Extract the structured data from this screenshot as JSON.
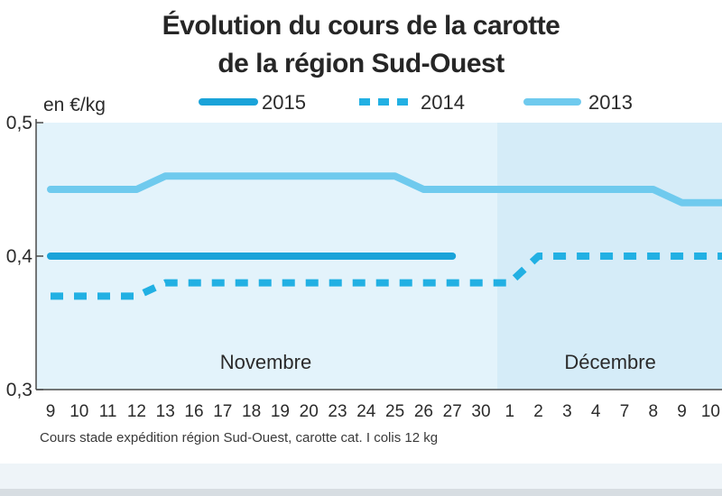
{
  "chart_data": {
    "type": "line",
    "title": [
      "Évolution du cours de la carotte",
      "de la région Sud-Ouest"
    ],
    "ylabel": "en €/kg",
    "ylim": [
      0.3,
      0.5
    ],
    "yticks": [
      "0,5",
      "0,4",
      "0,3"
    ],
    "yticks_values": [
      0.5,
      0.4,
      0.3
    ],
    "categories": [
      "9",
      "10",
      "11",
      "12",
      "13",
      "16",
      "17",
      "18",
      "19",
      "20",
      "23",
      "24",
      "25",
      "26",
      "27",
      "30",
      "1",
      "2",
      "3",
      "4",
      "7",
      "8",
      "9",
      "10"
    ],
    "months": [
      {
        "label": "Novembre",
        "from_index": 0,
        "to_index": 15
      },
      {
        "label": "Décembre",
        "from_index": 16,
        "to_index": 23
      }
    ],
    "legend_position": "top",
    "series": [
      {
        "name": "2015",
        "style": "solid",
        "color": "#1aa3d9",
        "values": [
          0.4,
          0.4,
          0.4,
          0.4,
          0.4,
          0.4,
          0.4,
          0.4,
          0.4,
          0.4,
          0.4,
          0.4,
          0.4,
          0.4,
          0.4,
          null,
          null,
          null,
          null,
          null,
          null,
          null,
          null,
          null
        ]
      },
      {
        "name": "2014",
        "style": "dashed",
        "color": "#22b0e3",
        "values": [
          0.37,
          0.37,
          0.37,
          0.37,
          0.38,
          0.38,
          0.38,
          0.38,
          0.38,
          0.38,
          0.38,
          0.38,
          0.38,
          0.38,
          0.38,
          0.38,
          0.38,
          0.4,
          0.4,
          0.4,
          0.4,
          0.4,
          0.4,
          0.4
        ]
      },
      {
        "name": "2013",
        "style": "solid",
        "color": "#6fcaee",
        "values": [
          0.45,
          0.45,
          0.45,
          0.45,
          0.46,
          0.46,
          0.46,
          0.46,
          0.46,
          0.46,
          0.46,
          0.46,
          0.46,
          0.45,
          0.45,
          0.45,
          0.45,
          0.45,
          0.45,
          0.45,
          0.45,
          0.45,
          0.44,
          0.44
        ]
      }
    ],
    "source": "Cours stade expédition région Sud-Ouest, carotte cat. I colis 12 kg"
  },
  "colors": {
    "plot_bg_nov": "#e3f3fb",
    "plot_bg_dec": "#d5ecf8",
    "axis": "#4a4a4a"
  }
}
